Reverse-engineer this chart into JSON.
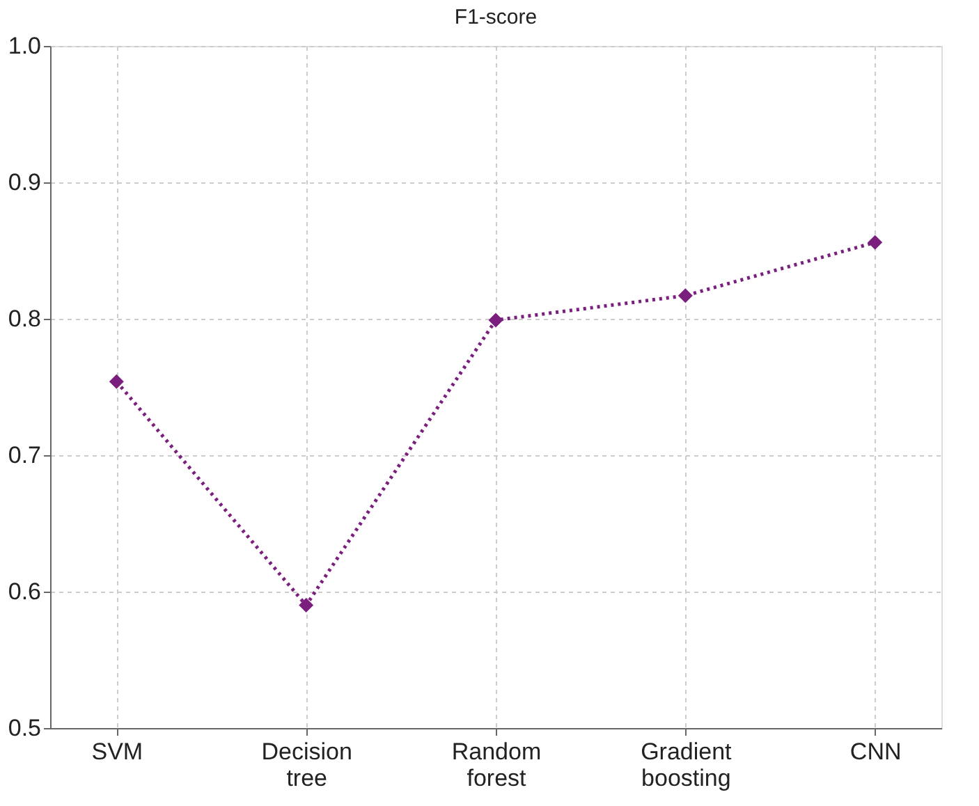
{
  "chart_data": {
    "type": "line",
    "title": "F1-score",
    "categories": [
      "SVM",
      "Decision tree",
      "Random forest",
      "Gradient boosting",
      "CNN"
    ],
    "series": [
      {
        "color": "#7b1f7f",
        "values": [
          0.754,
          0.59,
          0.799,
          0.817,
          0.856
        ]
      }
    ],
    "ylim": [
      0.5,
      1.0
    ],
    "yticks": [
      0.5,
      0.6,
      0.7,
      0.8,
      0.9,
      {
        "value": 1.0,
        "label": "1.0"
      }
    ],
    "grid": true,
    "marker": "diamond",
    "line_style": "dotted"
  }
}
